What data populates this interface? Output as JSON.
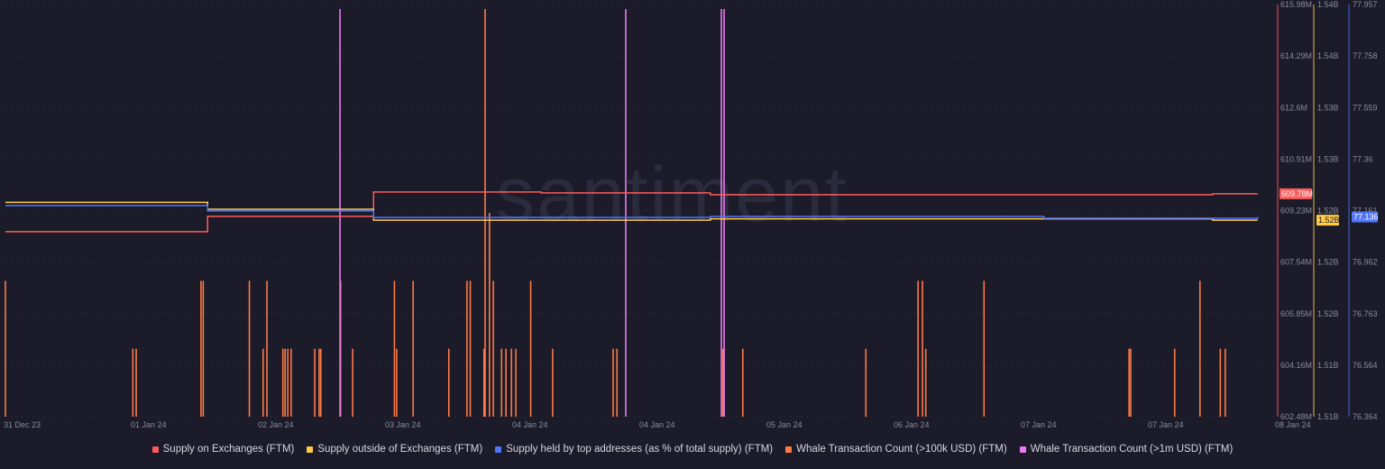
{
  "watermark": "santiment",
  "chart_data": {
    "type": "line",
    "x_tick_labels": [
      "31 Dec 23",
      "01 Jan 24",
      "02 Jan 24",
      "03 Jan 24",
      "04 Jan 24",
      "04 Jan 24",
      "05 Jan 24",
      "06 Jan 24",
      "07 Jan 24",
      "07 Jan 24",
      "08 Jan 24"
    ],
    "x_range": [
      "2023-12-31T00:00",
      "2024-01-08T00:00"
    ],
    "grid": true,
    "legend_position": "bottom",
    "axes": {
      "supply_on_exchanges": {
        "range": [
          602.48,
          615.98
        ],
        "unit": "M",
        "ticks": [
          "615.98M",
          "614.29M",
          "612.6M",
          "610.91M",
          "609.23M",
          "607.54M",
          "605.85M",
          "604.16M",
          "602.48M"
        ],
        "last_label": "609.78M",
        "color": "#ff5b5b"
      },
      "supply_outside": {
        "range": [
          1.51,
          1.54
        ],
        "unit": "B",
        "ticks": [
          "1.54B",
          "1.54B",
          "1.53B",
          "1.53B",
          "1.52B",
          "1.52B",
          "1.52B",
          "1.51B",
          "1.51B"
        ],
        "last_label": "1.52B",
        "color": "#ffcb47"
      },
      "supply_top_addresses": {
        "range": [
          76.364,
          77.957
        ],
        "ticks": [
          "77.957",
          "77.758",
          "77.559",
          "77.36",
          "77.161",
          "76.962",
          "76.763",
          "76.564",
          "76.364"
        ],
        "last_label": "77.136",
        "color": "#5275ff"
      }
    },
    "series": [
      {
        "name": "Supply on Exchanges (FTM)",
        "axis": "supply_on_exchanges",
        "color": "#ff5b5b",
        "kind": "step",
        "points": [
          [
            "2023-12-31T00:00",
            608.54
          ],
          [
            "2024-01-01T06:40",
            609.04
          ],
          [
            "2024-01-02T07:50",
            609.84
          ],
          [
            "2024-01-03T09:15",
            609.81
          ],
          [
            "2024-01-04T10:55",
            609.75
          ],
          [
            "2024-01-07T15:05",
            609.78
          ],
          [
            "2024-01-07T21:55",
            609.78
          ]
        ]
      },
      {
        "name": "Supply outside of Exchanges (FTM)",
        "axis": "supply_outside",
        "color": "#ffcb47",
        "kind": "step",
        "points": [
          [
            "2023-12-31T00:00",
            1.5256
          ],
          [
            "2024-01-01T06:40",
            1.5251
          ],
          [
            "2024-01-02T07:50",
            1.5243
          ],
          [
            "2024-01-04T10:55",
            1.5244
          ],
          [
            "2024-01-07T15:05",
            1.5243
          ],
          [
            "2024-01-07T21:55",
            1.5243
          ]
        ]
      },
      {
        "name": "Supply held by top addresses (as % of total supply) (FTM)",
        "axis": "supply_top_addresses",
        "color": "#5275ff",
        "kind": "step",
        "points": [
          [
            "2023-12-31T00:00",
            77.18
          ],
          [
            "2024-01-01T06:40",
            77.159
          ],
          [
            "2024-01-02T07:50",
            77.134
          ],
          [
            "2024-01-04T10:55",
            77.138
          ],
          [
            "2024-01-06T13:30",
            77.131
          ],
          [
            "2024-01-07T21:55",
            77.136
          ]
        ]
      },
      {
        "name": "Whale Transaction Count (>100k USD) (FTM)",
        "color": "#ff7a45",
        "kind": "bar",
        "max": 6,
        "points": [
          [
            "2023-12-31T00:00",
            2
          ],
          [
            "2023-12-31T19:20",
            1
          ],
          [
            "2023-12-31T19:50",
            1
          ],
          [
            "2024-01-01T05:40",
            2
          ],
          [
            "2024-01-01T06:00",
            2
          ],
          [
            "2024-01-01T13:00",
            2
          ],
          [
            "2024-01-01T15:05",
            1
          ],
          [
            "2024-01-01T15:40",
            2
          ],
          [
            "2024-01-01T18:05",
            1
          ],
          [
            "2024-01-01T18:25",
            1
          ],
          [
            "2024-01-01T18:50",
            1
          ],
          [
            "2024-01-01T19:20",
            1
          ],
          [
            "2024-01-01T22:55",
            1
          ],
          [
            "2024-01-01T23:35",
            1
          ],
          [
            "2024-01-01T23:50",
            1
          ],
          [
            "2024-01-02T02:50",
            2
          ],
          [
            "2024-01-02T04:40",
            1
          ],
          [
            "2024-01-02T11:00",
            2
          ],
          [
            "2024-01-02T11:20",
            1
          ],
          [
            "2024-01-02T13:50",
            2
          ],
          [
            "2024-01-02T19:15",
            1
          ],
          [
            "2024-01-02T22:00",
            2
          ],
          [
            "2024-01-02T22:30",
            2
          ],
          [
            "2024-01-03T00:35",
            1
          ],
          [
            "2024-01-03T00:45",
            6
          ],
          [
            "2024-01-03T01:25",
            3
          ],
          [
            "2024-01-03T02:00",
            2
          ],
          [
            "2024-01-03T03:15",
            1
          ],
          [
            "2024-01-03T03:55",
            1
          ],
          [
            "2024-01-03T04:45",
            1
          ],
          [
            "2024-01-03T05:25",
            1
          ],
          [
            "2024-01-03T07:40",
            2
          ],
          [
            "2024-01-03T11:00",
            1
          ],
          [
            "2024-01-03T20:10",
            1
          ],
          [
            "2024-01-03T20:45",
            1
          ],
          [
            "2024-01-04T12:50",
            1
          ],
          [
            "2024-01-04T15:50",
            1
          ],
          [
            "2024-01-05T10:30",
            1
          ],
          [
            "2024-01-05T18:25",
            2
          ],
          [
            "2024-01-05T19:05",
            2
          ],
          [
            "2024-01-05T19:35",
            1
          ],
          [
            "2024-01-06T04:25",
            2
          ],
          [
            "2024-01-07T02:25",
            1
          ],
          [
            "2024-01-07T02:40",
            1
          ],
          [
            "2024-01-07T09:20",
            1
          ],
          [
            "2024-01-07T13:10",
            2
          ],
          [
            "2024-01-07T16:15",
            1
          ],
          [
            "2024-01-07T17:00",
            1
          ]
        ]
      },
      {
        "name": "Whale Transaction Count (>1m USD) (FTM)",
        "color": "#e97bf0",
        "kind": "bar",
        "max": 1,
        "points": [
          [
            "2024-01-02T02:45",
            1
          ],
          [
            "2024-01-03T22:05",
            1
          ],
          [
            "2024-01-04T12:35",
            1
          ],
          [
            "2024-01-04T13:00",
            1
          ]
        ]
      }
    ]
  }
}
